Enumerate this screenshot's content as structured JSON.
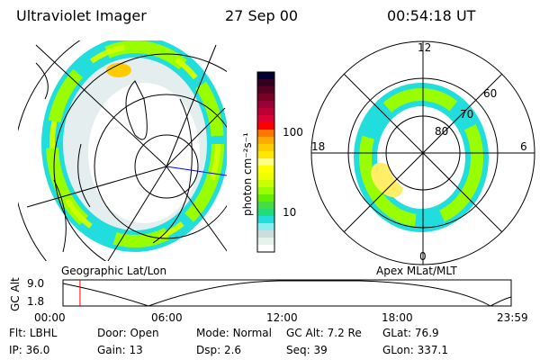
{
  "header": {
    "instrument": "Ultraviolet Imager",
    "date": "27 Sep 00",
    "time": "00:54:18 UT"
  },
  "colorbar": {
    "label": "photon cm⁻²s⁻¹",
    "ticks": [
      "100",
      "10"
    ],
    "colors": [
      "#000033",
      "#330022",
      "#550022",
      "#770022",
      "#990033",
      "#bb0033",
      "#dd0033",
      "#ff0000",
      "#ff7700",
      "#ffaa00",
      "#ffcc00",
      "#ffe600",
      "#ffff88",
      "#ffff00",
      "#eeff00",
      "#ccff00",
      "#99ff00",
      "#66ee00",
      "#44dd44",
      "#22dd77",
      "#22dddd",
      "#88eeee",
      "#ccdddd",
      "#e6f2ec",
      "#ffffff"
    ]
  },
  "left_map": {
    "label": "Geographic Lat/Lon"
  },
  "right_map": {
    "label": "Apex MLat/MLT",
    "mlt_labels": [
      "12",
      "18",
      "6",
      "0"
    ],
    "lat_labels": [
      "60",
      "70",
      "80"
    ]
  },
  "altitude_plot": {
    "ylabel": "GC Alt",
    "yticks": [
      "9.0",
      "1.8"
    ],
    "xticks": [
      "00:00",
      "06:00",
      "12:00",
      "18:00",
      "23:59"
    ],
    "current_time_fraction": 0.038
  },
  "info": [
    [
      {
        "k": "Flt:",
        "v": "LBHL"
      },
      {
        "k": "Door:",
        "v": "Open"
      },
      {
        "k": "Mode:",
        "v": "Normal"
      },
      {
        "k": "GC Alt:",
        "v": "7.2 Re"
      },
      {
        "k": "GLat:",
        "v": "76.9"
      }
    ],
    [
      {
        "k": "IP:",
        "v": "36.0"
      },
      {
        "k": "Gain:",
        "v": "13"
      },
      {
        "k": "Dsp:",
        "v": "2.6"
      },
      {
        "k": "Seq:",
        "v": "39"
      },
      {
        "k": "GLon:",
        "v": "337.1"
      }
    ]
  ]
}
